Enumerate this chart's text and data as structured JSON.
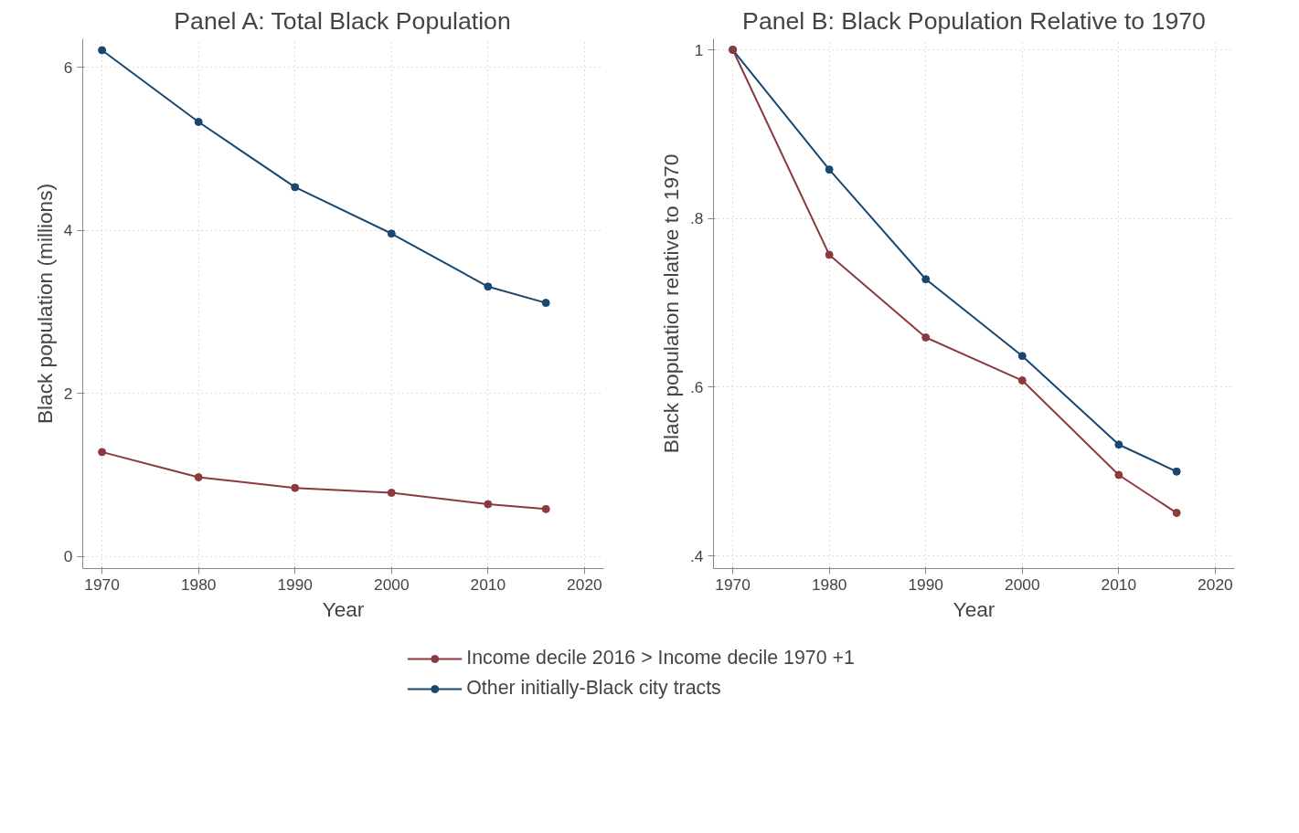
{
  "chart_data": [
    {
      "type": "line",
      "title": "Panel A: Total Black Population",
      "xlabel": "Year",
      "ylabel": "Black population (millions)",
      "x": [
        1970,
        1980,
        1990,
        2000,
        2010,
        2016
      ],
      "series": [
        {
          "name": "Income decile 2016 > Income decile 1970 +1",
          "color": "#8b3a3e",
          "values": [
            1.28,
            0.97,
            0.84,
            0.78,
            0.64,
            0.58
          ]
        },
        {
          "name": "Other initially-Black city tracts",
          "color": "#1a476f",
          "values": [
            6.21,
            5.33,
            4.53,
            3.96,
            3.31,
            3.11
          ]
        }
      ],
      "xlim": [
        1968,
        2022
      ],
      "xticks": [
        1970,
        1980,
        1990,
        2000,
        2010,
        2020
      ],
      "ylim": [
        -0.15,
        6.35
      ],
      "yticks": [
        0,
        2,
        4,
        6
      ],
      "grid": true,
      "legend": "bottom",
      "marker": "circle",
      "line_style": "solid"
    },
    {
      "type": "line",
      "title": "Panel B: Black Population Relative to 1970",
      "xlabel": "Year",
      "ylabel": "Black population relative to 1970",
      "x": [
        1970,
        1980,
        1990,
        2000,
        2010,
        2016
      ],
      "series": [
        {
          "color": "#8b3a3e",
          "values": [
            1.0,
            0.757,
            0.659,
            0.608,
            0.496,
            0.451
          ]
        },
        {
          "color": "#1a476f",
          "values": [
            1.0,
            0.858,
            0.728,
            0.637,
            0.532,
            0.5
          ]
        }
      ],
      "xlim": [
        1968,
        2022
      ],
      "xticks": [
        1970,
        1980,
        1990,
        2000,
        2010,
        2020
      ],
      "ylim": [
        0.385,
        1.013
      ],
      "yticks": [
        {
          "value": 0.4,
          "label": ".4"
        },
        {
          "value": 0.6,
          "label": ".6"
        },
        {
          "value": 0.8,
          "label": ".8"
        },
        {
          "value": 1,
          "label": "1"
        }
      ],
      "grid": true,
      "marker": "circle",
      "line_style": "solid"
    }
  ]
}
